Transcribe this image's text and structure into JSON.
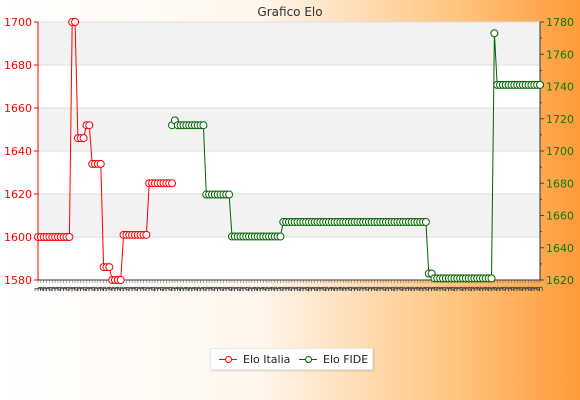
{
  "chart_data": {
    "type": "line",
    "title": "Grafico Elo",
    "left_axis": {
      "ylim": [
        1580,
        1700
      ],
      "ticks": [
        1580,
        1600,
        1620,
        1640,
        1660,
        1680,
        1700
      ],
      "color": "#ff0000"
    },
    "right_axis": {
      "ylim": [
        1620,
        1780
      ],
      "ticks": [
        1620,
        1640,
        1660,
        1680,
        1700,
        1720,
        1740,
        1760,
        1780
      ],
      "color": "#008000"
    },
    "grid": true,
    "legend_position": "bottom",
    "series": [
      {
        "name": "Elo Italia",
        "axis": "left",
        "color": "#ff0000",
        "points": [
          [
            0,
            1600
          ],
          [
            1,
            1600
          ],
          [
            2,
            1600
          ],
          [
            3,
            1600
          ],
          [
            4,
            1600
          ],
          [
            5,
            1600
          ],
          [
            6,
            1600
          ],
          [
            7,
            1600
          ],
          [
            8,
            1600
          ],
          [
            9,
            1600
          ],
          [
            10,
            1600
          ],
          [
            11,
            1600
          ],
          [
            12,
            1700
          ],
          [
            13,
            1700
          ],
          [
            14,
            1646
          ],
          [
            15,
            1646
          ],
          [
            16,
            1646
          ],
          [
            17,
            1652
          ],
          [
            18,
            1652
          ],
          [
            19,
            1634
          ],
          [
            20,
            1634
          ],
          [
            21,
            1634
          ],
          [
            22,
            1634
          ],
          [
            23,
            1586
          ],
          [
            24,
            1586
          ],
          [
            25,
            1586
          ],
          [
            26,
            1580
          ],
          [
            27,
            1580
          ],
          [
            28,
            1580
          ],
          [
            29,
            1580
          ],
          [
            30,
            1601
          ],
          [
            31,
            1601
          ],
          [
            32,
            1601
          ],
          [
            33,
            1601
          ],
          [
            34,
            1601
          ],
          [
            35,
            1601
          ],
          [
            36,
            1601
          ],
          [
            37,
            1601
          ],
          [
            38,
            1601
          ],
          [
            39,
            1625
          ],
          [
            40,
            1625
          ],
          [
            41,
            1625
          ],
          [
            42,
            1625
          ],
          [
            43,
            1625
          ],
          [
            44,
            1625
          ],
          [
            45,
            1625
          ],
          [
            46,
            1625
          ],
          [
            47,
            1625
          ]
        ]
      },
      {
        "name": "Elo FIDE",
        "axis": "right",
        "color": "#006400",
        "points": [
          [
            47,
            1716
          ],
          [
            48,
            1719
          ],
          [
            49,
            1716
          ],
          [
            50,
            1716
          ],
          [
            51,
            1716
          ],
          [
            52,
            1716
          ],
          [
            53,
            1716
          ],
          [
            54,
            1716
          ],
          [
            55,
            1716
          ],
          [
            56,
            1716
          ],
          [
            57,
            1716
          ],
          [
            58,
            1716
          ],
          [
            59,
            1673
          ],
          [
            60,
            1673
          ],
          [
            61,
            1673
          ],
          [
            62,
            1673
          ],
          [
            63,
            1673
          ],
          [
            64,
            1673
          ],
          [
            65,
            1673
          ],
          [
            66,
            1673
          ],
          [
            67,
            1673
          ],
          [
            68,
            1647
          ],
          [
            69,
            1647
          ],
          [
            70,
            1647
          ],
          [
            71,
            1647
          ],
          [
            72,
            1647
          ],
          [
            73,
            1647
          ],
          [
            74,
            1647
          ],
          [
            75,
            1647
          ],
          [
            76,
            1647
          ],
          [
            77,
            1647
          ],
          [
            78,
            1647
          ],
          [
            79,
            1647
          ],
          [
            80,
            1647
          ],
          [
            81,
            1647
          ],
          [
            82,
            1647
          ],
          [
            83,
            1647
          ],
          [
            84,
            1647
          ],
          [
            85,
            1647
          ],
          [
            86,
            1656
          ],
          [
            87,
            1656
          ],
          [
            88,
            1656
          ],
          [
            89,
            1656
          ],
          [
            90,
            1656
          ],
          [
            91,
            1656
          ],
          [
            92,
            1656
          ],
          [
            93,
            1656
          ],
          [
            94,
            1656
          ],
          [
            95,
            1656
          ],
          [
            96,
            1656
          ],
          [
            97,
            1656
          ],
          [
            98,
            1656
          ],
          [
            99,
            1656
          ],
          [
            100,
            1656
          ],
          [
            101,
            1656
          ],
          [
            102,
            1656
          ],
          [
            103,
            1656
          ],
          [
            104,
            1656
          ],
          [
            105,
            1656
          ],
          [
            106,
            1656
          ],
          [
            107,
            1656
          ],
          [
            108,
            1656
          ],
          [
            109,
            1656
          ],
          [
            110,
            1656
          ],
          [
            111,
            1656
          ],
          [
            112,
            1656
          ],
          [
            113,
            1656
          ],
          [
            114,
            1656
          ],
          [
            115,
            1656
          ],
          [
            116,
            1656
          ],
          [
            117,
            1656
          ],
          [
            118,
            1656
          ],
          [
            119,
            1656
          ],
          [
            120,
            1656
          ],
          [
            121,
            1656
          ],
          [
            122,
            1656
          ],
          [
            123,
            1656
          ],
          [
            124,
            1656
          ],
          [
            125,
            1656
          ],
          [
            126,
            1656
          ],
          [
            127,
            1656
          ],
          [
            128,
            1656
          ],
          [
            129,
            1656
          ],
          [
            130,
            1656
          ],
          [
            131,
            1656
          ],
          [
            132,
            1656
          ],
          [
            133,
            1656
          ],
          [
            134,
            1656
          ],
          [
            135,
            1656
          ],
          [
            136,
            1656
          ],
          [
            137,
            1624
          ],
          [
            138,
            1624
          ],
          [
            139,
            1621
          ],
          [
            140,
            1621
          ],
          [
            141,
            1621
          ],
          [
            142,
            1621
          ],
          [
            143,
            1621
          ],
          [
            144,
            1621
          ],
          [
            145,
            1621
          ],
          [
            146,
            1621
          ],
          [
            147,
            1621
          ],
          [
            148,
            1621
          ],
          [
            149,
            1621
          ],
          [
            150,
            1621
          ],
          [
            151,
            1621
          ],
          [
            152,
            1621
          ],
          [
            153,
            1621
          ],
          [
            154,
            1621
          ],
          [
            155,
            1621
          ],
          [
            156,
            1621
          ],
          [
            157,
            1621
          ],
          [
            158,
            1621
          ],
          [
            159,
            1621
          ],
          [
            160,
            1773
          ],
          [
            161,
            1741
          ],
          [
            162,
            1741
          ],
          [
            163,
            1741
          ],
          [
            164,
            1741
          ],
          [
            165,
            1741
          ],
          [
            166,
            1741
          ],
          [
            167,
            1741
          ],
          [
            168,
            1741
          ],
          [
            169,
            1741
          ],
          [
            170,
            1741
          ],
          [
            171,
            1741
          ],
          [
            172,
            1741
          ],
          [
            173,
            1741
          ],
          [
            174,
            1741
          ],
          [
            175,
            1741
          ],
          [
            176,
            1741
          ]
        ]
      }
    ],
    "x_tick_labels": [
      "1",
      "2",
      "3",
      "1",
      "2",
      "3",
      "1",
      "2",
      "3",
      "1",
      "2",
      "3"
    ]
  }
}
